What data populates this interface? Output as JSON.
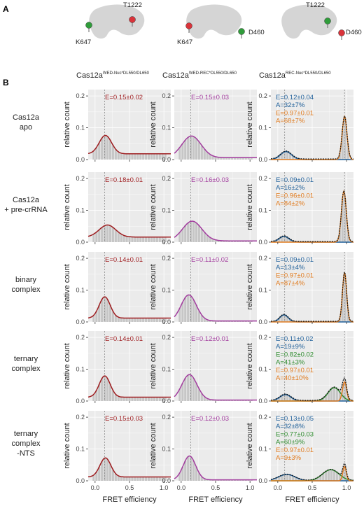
{
  "panel_a_label": "A",
  "panel_b_label": "B",
  "colors": {
    "wed_nuc": "#9e1b1e",
    "wed_rec": "#a23c9e",
    "low": "#1f5f99",
    "mid": "#2e8b2e",
    "high": "#e07b1f",
    "total": "#111111",
    "bars": "#c6c6c6",
    "panel_bg": "#ebebeb",
    "grid": "#ffffff",
    "red_pin": "#d9333a",
    "green_pin": "#2f9c3a",
    "protein": "#d5d5d5"
  },
  "protein_schematics": [
    {
      "labels": [
        "T1222",
        "K647"
      ],
      "pins": [
        "green",
        "red"
      ]
    },
    {
      "labels": [
        "K647",
        "D460"
      ],
      "pins": [
        "red",
        "green"
      ]
    },
    {
      "labels": [
        "T1222",
        "D460"
      ],
      "pins": [
        "green",
        "red"
      ]
    }
  ],
  "column_titles": [
    {
      "base": "Cas12a",
      "sup": "WED-Nuc*DL550/DL650"
    },
    {
      "base": "Cas12a",
      "sup": "WED-REC*DL550/DL650"
    },
    {
      "base": "Cas12a",
      "sup": "REC-Nuc*DL550/DL650"
    }
  ],
  "row_labels": [
    [
      "Cas12a",
      "apo"
    ],
    [
      "Cas12a",
      "+ pre-crRNA"
    ],
    [
      "binary",
      "complex"
    ],
    [
      "ternary",
      "complex"
    ],
    [
      "ternary",
      "complex",
      "-NTS"
    ]
  ],
  "ylabel": "relative count",
  "xlabel": "FRET efficiency",
  "chart_data": {
    "type": "histogram-grid",
    "xlim": [
      -0.1,
      1.1
    ],
    "ylim": [
      0,
      0.22
    ],
    "xticks": [
      0,
      0.5,
      1
    ],
    "xtick_labels": [
      "0.0",
      "0.5",
      "1.0"
    ],
    "yticks": [
      0,
      0.1,
      0.2
    ],
    "ytick_labels": [
      "0.0",
      "0.1",
      "0.2"
    ],
    "dashed_lines": {
      "col0": [
        0.14
      ],
      "col1": [
        0.14
      ],
      "col2": [
        0.1,
        0.97
      ]
    },
    "panels": [
      [
        {
          "annotations": [
            {
              "text": "E=0.15±0.02",
              "color": "wed_nuc"
            }
          ],
          "baseline": 0.018,
          "fits": [
            {
              "mu": 0.15,
              "sigma": 0.09,
              "amp": 0.058,
              "color": "wed_nuc"
            }
          ]
        },
        {
          "annotations": [
            {
              "text": "E=0.15±0.03",
              "color": "wed_rec"
            }
          ],
          "baseline": 0.006,
          "fits": [
            {
              "mu": 0.15,
              "sigma": 0.14,
              "amp": 0.068,
              "color": "wed_rec"
            }
          ]
        },
        {
          "annotations": [
            {
              "text": "E=0.12±0.04",
              "color": "low"
            },
            {
              "text": "A=32±7%",
              "color": "low"
            },
            {
              "text": "E=0.97±0.01",
              "color": "high"
            },
            {
              "text": "A=68±7%",
              "color": "high"
            }
          ],
          "baseline": 0.002,
          "fits": [
            {
              "mu": 0.12,
              "sigma": 0.08,
              "amp": 0.025,
              "color": "low"
            },
            {
              "mu": 0.97,
              "sigma": 0.035,
              "amp": 0.135,
              "color": "high"
            }
          ]
        }
      ],
      [
        {
          "annotations": [
            {
              "text": "E=0.18±0.01",
              "color": "wed_nuc"
            }
          ],
          "baseline": 0.016,
          "fits": [
            {
              "mu": 0.18,
              "sigma": 0.12,
              "amp": 0.038,
              "color": "wed_nuc"
            }
          ]
        },
        {
          "annotations": [
            {
              "text": "E=0.16±0.03",
              "color": "wed_rec"
            }
          ],
          "baseline": 0.004,
          "fits": [
            {
              "mu": 0.16,
              "sigma": 0.14,
              "amp": 0.062,
              "color": "wed_rec"
            }
          ]
        },
        {
          "annotations": [
            {
              "text": "E=0.09±0.01",
              "color": "low"
            },
            {
              "text": "A=16±2%",
              "color": "low"
            },
            {
              "text": "E=0.96±0.01",
              "color": "high"
            },
            {
              "text": "A=84±2%",
              "color": "high"
            }
          ],
          "baseline": 0.002,
          "fits": [
            {
              "mu": 0.09,
              "sigma": 0.07,
              "amp": 0.018,
              "color": "low"
            },
            {
              "mu": 0.96,
              "sigma": 0.035,
              "amp": 0.16,
              "color": "high"
            }
          ]
        }
      ],
      [
        {
          "annotations": [
            {
              "text": "E=0.14±0.01",
              "color": "wed_nuc"
            }
          ],
          "baseline": 0.012,
          "fits": [
            {
              "mu": 0.14,
              "sigma": 0.08,
              "amp": 0.067,
              "color": "wed_nuc"
            }
          ]
        },
        {
          "annotations": [
            {
              "text": "E=0.11±0.02",
              "color": "wed_rec"
            }
          ],
          "baseline": 0.003,
          "fits": [
            {
              "mu": 0.11,
              "sigma": 0.11,
              "amp": 0.082,
              "color": "wed_rec"
            }
          ]
        },
        {
          "annotations": [
            {
              "text": "E=0.09±0.01",
              "color": "low"
            },
            {
              "text": "A=13±4%",
              "color": "low"
            },
            {
              "text": "E=0.97±0.01",
              "color": "high"
            },
            {
              "text": "A=87±4%",
              "color": "high"
            }
          ],
          "baseline": 0.002,
          "fits": [
            {
              "mu": 0.09,
              "sigma": 0.06,
              "amp": 0.022,
              "color": "low"
            },
            {
              "mu": 0.97,
              "sigma": 0.03,
              "amp": 0.155,
              "color": "high"
            }
          ]
        }
      ],
      [
        {
          "annotations": [
            {
              "text": "E=0.14±0.01",
              "color": "wed_nuc"
            }
          ],
          "baseline": 0.012,
          "fits": [
            {
              "mu": 0.14,
              "sigma": 0.08,
              "amp": 0.067,
              "color": "wed_nuc"
            }
          ]
        },
        {
          "annotations": [
            {
              "text": "E=0.12±0.01",
              "color": "wed_rec"
            }
          ],
          "baseline": 0.003,
          "fits": [
            {
              "mu": 0.12,
              "sigma": 0.11,
              "amp": 0.08,
              "color": "wed_rec"
            }
          ]
        },
        {
          "annotations": [
            {
              "text": "E=0.11±0.02",
              "color": "low"
            },
            {
              "text": "A=19±9%",
              "color": "low"
            },
            {
              "text": "E=0.82±0.02",
              "color": "mid"
            },
            {
              "text": "A=41±3%",
              "color": "mid"
            },
            {
              "text": "E=0.97±0.01",
              "color": "high"
            },
            {
              "text": "A=40±10%",
              "color": "high"
            }
          ],
          "baseline": 0.002,
          "fits": [
            {
              "mu": 0.11,
              "sigma": 0.08,
              "amp": 0.02,
              "color": "low"
            },
            {
              "mu": 0.82,
              "sigma": 0.09,
              "amp": 0.042,
              "color": "mid"
            },
            {
              "mu": 0.97,
              "sigma": 0.03,
              "amp": 0.06,
              "color": "high"
            }
          ]
        }
      ],
      [
        {
          "annotations": [
            {
              "text": "E=0.15±0.03",
              "color": "wed_nuc"
            }
          ],
          "baseline": 0.012,
          "fits": [
            {
              "mu": 0.15,
              "sigma": 0.08,
              "amp": 0.06,
              "color": "wed_nuc"
            }
          ]
        },
        {
          "annotations": [
            {
              "text": "E=0.12±0.03",
              "color": "wed_rec"
            }
          ],
          "baseline": 0.003,
          "fits": [
            {
              "mu": 0.12,
              "sigma": 0.09,
              "amp": 0.075,
              "color": "wed_rec"
            }
          ]
        },
        {
          "annotations": [
            {
              "text": "E=0.13±0.05",
              "color": "low"
            },
            {
              "text": "A=32±8%",
              "color": "low"
            },
            {
              "text": "E=0.77±0.03",
              "color": "mid"
            },
            {
              "text": "A=60±9%",
              "color": "mid"
            },
            {
              "text": "E=0.97±0.01",
              "color": "high"
            },
            {
              "text": "A=9±3%",
              "color": "high"
            }
          ],
          "baseline": 0.001,
          "fits": [
            {
              "mu": 0.13,
              "sigma": 0.12,
              "amp": 0.02,
              "color": "low"
            },
            {
              "mu": 0.77,
              "sigma": 0.12,
              "amp": 0.035,
              "color": "mid"
            },
            {
              "mu": 0.97,
              "sigma": 0.025,
              "amp": 0.045,
              "color": "high"
            }
          ]
        }
      ]
    ]
  }
}
